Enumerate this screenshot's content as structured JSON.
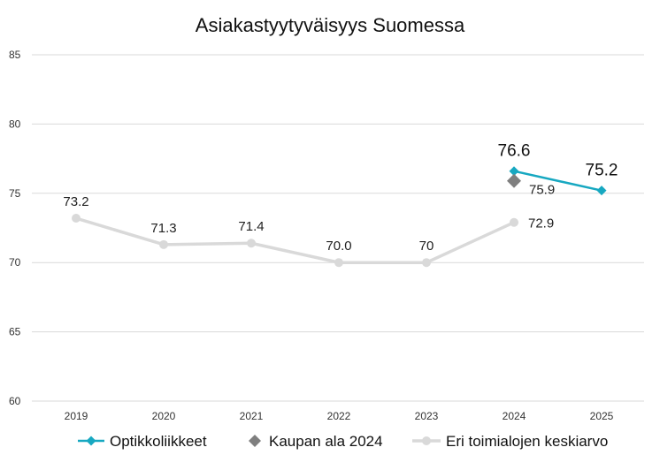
{
  "chart_data": {
    "type": "line",
    "title": "Asiakastyytyväisyys Suomessa",
    "categories": [
      "2019",
      "2020",
      "2021",
      "2022",
      "2023",
      "2024",
      "2025"
    ],
    "ylim": [
      60,
      85
    ],
    "yticks": [
      60,
      65,
      70,
      75,
      80,
      85
    ],
    "grid": "horizontal",
    "legend_position": "bottom",
    "series": [
      {
        "name": "Optikkoliikkeet",
        "color": "#17A8C1",
        "marker": "diamond",
        "values": [
          null,
          null,
          null,
          null,
          null,
          76.6,
          75.2
        ],
        "labels": [
          "",
          "",
          "",
          "",
          "",
          "76.6",
          "75.2"
        ]
      },
      {
        "name": "Kaupan ala 2024",
        "color": "#7F7F7F",
        "marker": "diamond",
        "values": [
          null,
          null,
          null,
          null,
          null,
          75.9,
          null
        ],
        "labels": [
          "",
          "",
          "",
          "",
          "",
          "75.9",
          ""
        ]
      },
      {
        "name": "Eri toimialojen keskiarvo",
        "color": "#D9D9D9",
        "marker": "circle",
        "values": [
          73.2,
          71.3,
          71.4,
          70.0,
          70.0,
          72.9,
          null
        ],
        "labels": [
          "73.2",
          "71.3",
          "71.4",
          "70.0",
          "70",
          "72.9",
          ""
        ]
      }
    ]
  }
}
